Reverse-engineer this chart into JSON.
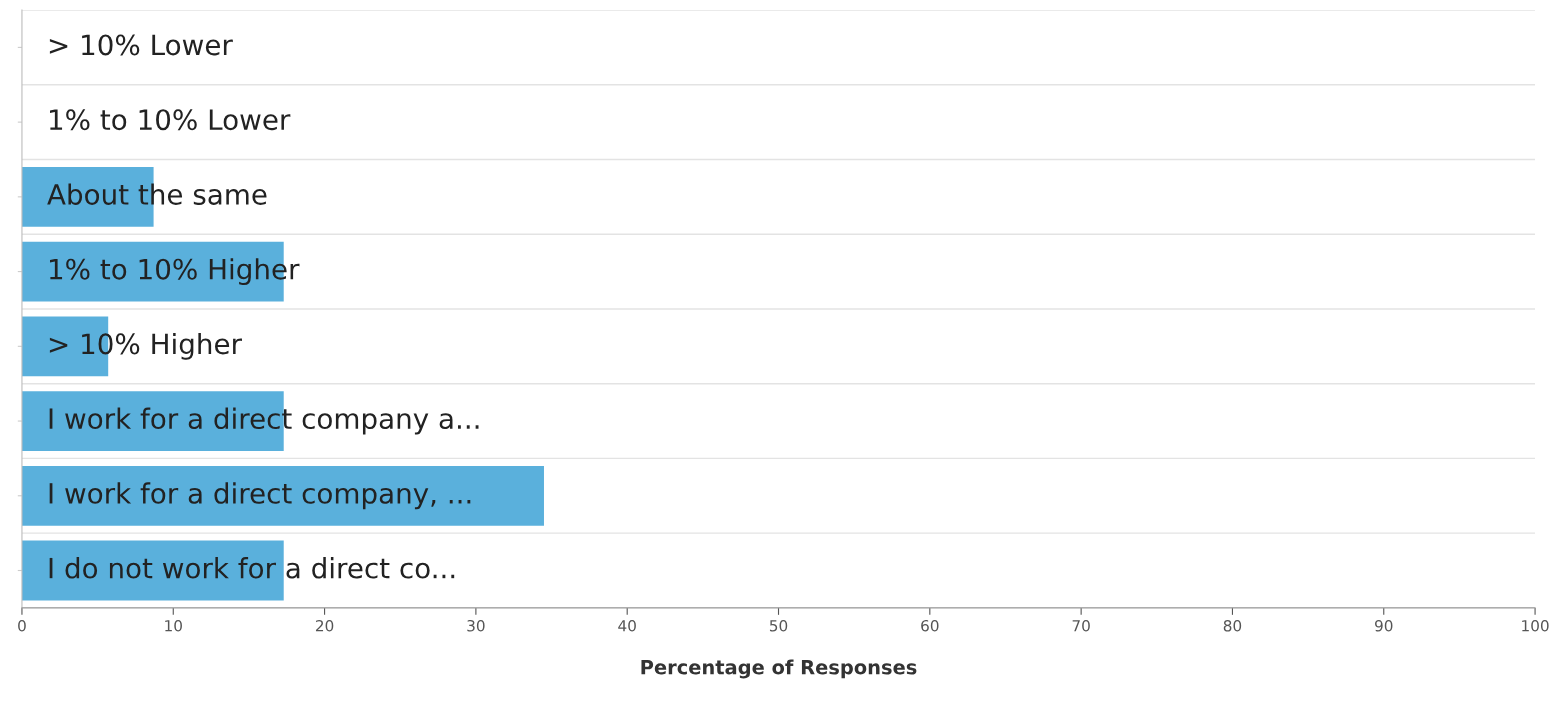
{
  "chart_data": {
    "type": "bar",
    "orientation": "horizontal",
    "xlabel": "Percentage of Responses",
    "categories": [
      "> 10% Lower",
      "1% to 10% Lower",
      "About the same",
      "1% to 10% Higher",
      "> 10% Higher",
      "I work for a direct company a...",
      "I work for a direct company, ...",
      "I do not work for a direct co..."
    ],
    "values": [
      0,
      0,
      8.7,
      17.3,
      5.7,
      17.3,
      34.5,
      17.3
    ],
    "color": "#5ab0dc",
    "xlim": [
      0,
      100
    ],
    "xticks": [
      0,
      10,
      20,
      30,
      40,
      50,
      60,
      70,
      80,
      90,
      100
    ],
    "grid": "y"
  }
}
